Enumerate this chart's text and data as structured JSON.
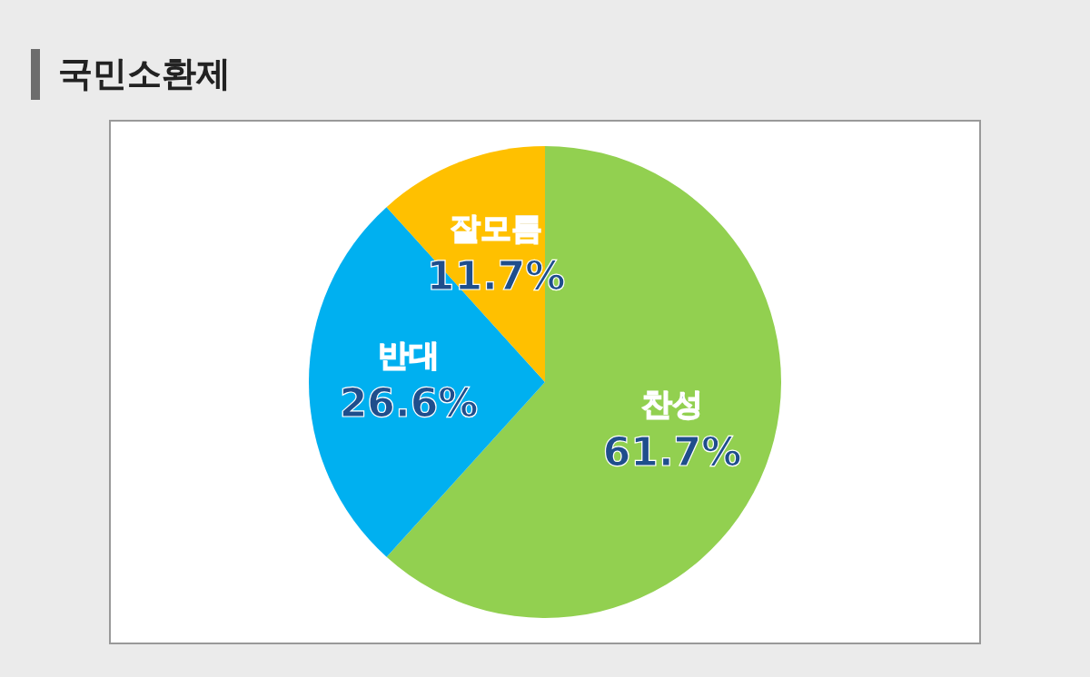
{
  "chart_data": {
    "type": "pie",
    "title": "국민소환제",
    "categories": [
      "찬성",
      "반대",
      "잘모름"
    ],
    "values": [
      61.7,
      26.6,
      11.7
    ],
    "colors": [
      "#92d050",
      "#00b0f0",
      "#ffc000"
    ],
    "value_labels": [
      "61.7%",
      "26.6%",
      "11.7%"
    ]
  }
}
